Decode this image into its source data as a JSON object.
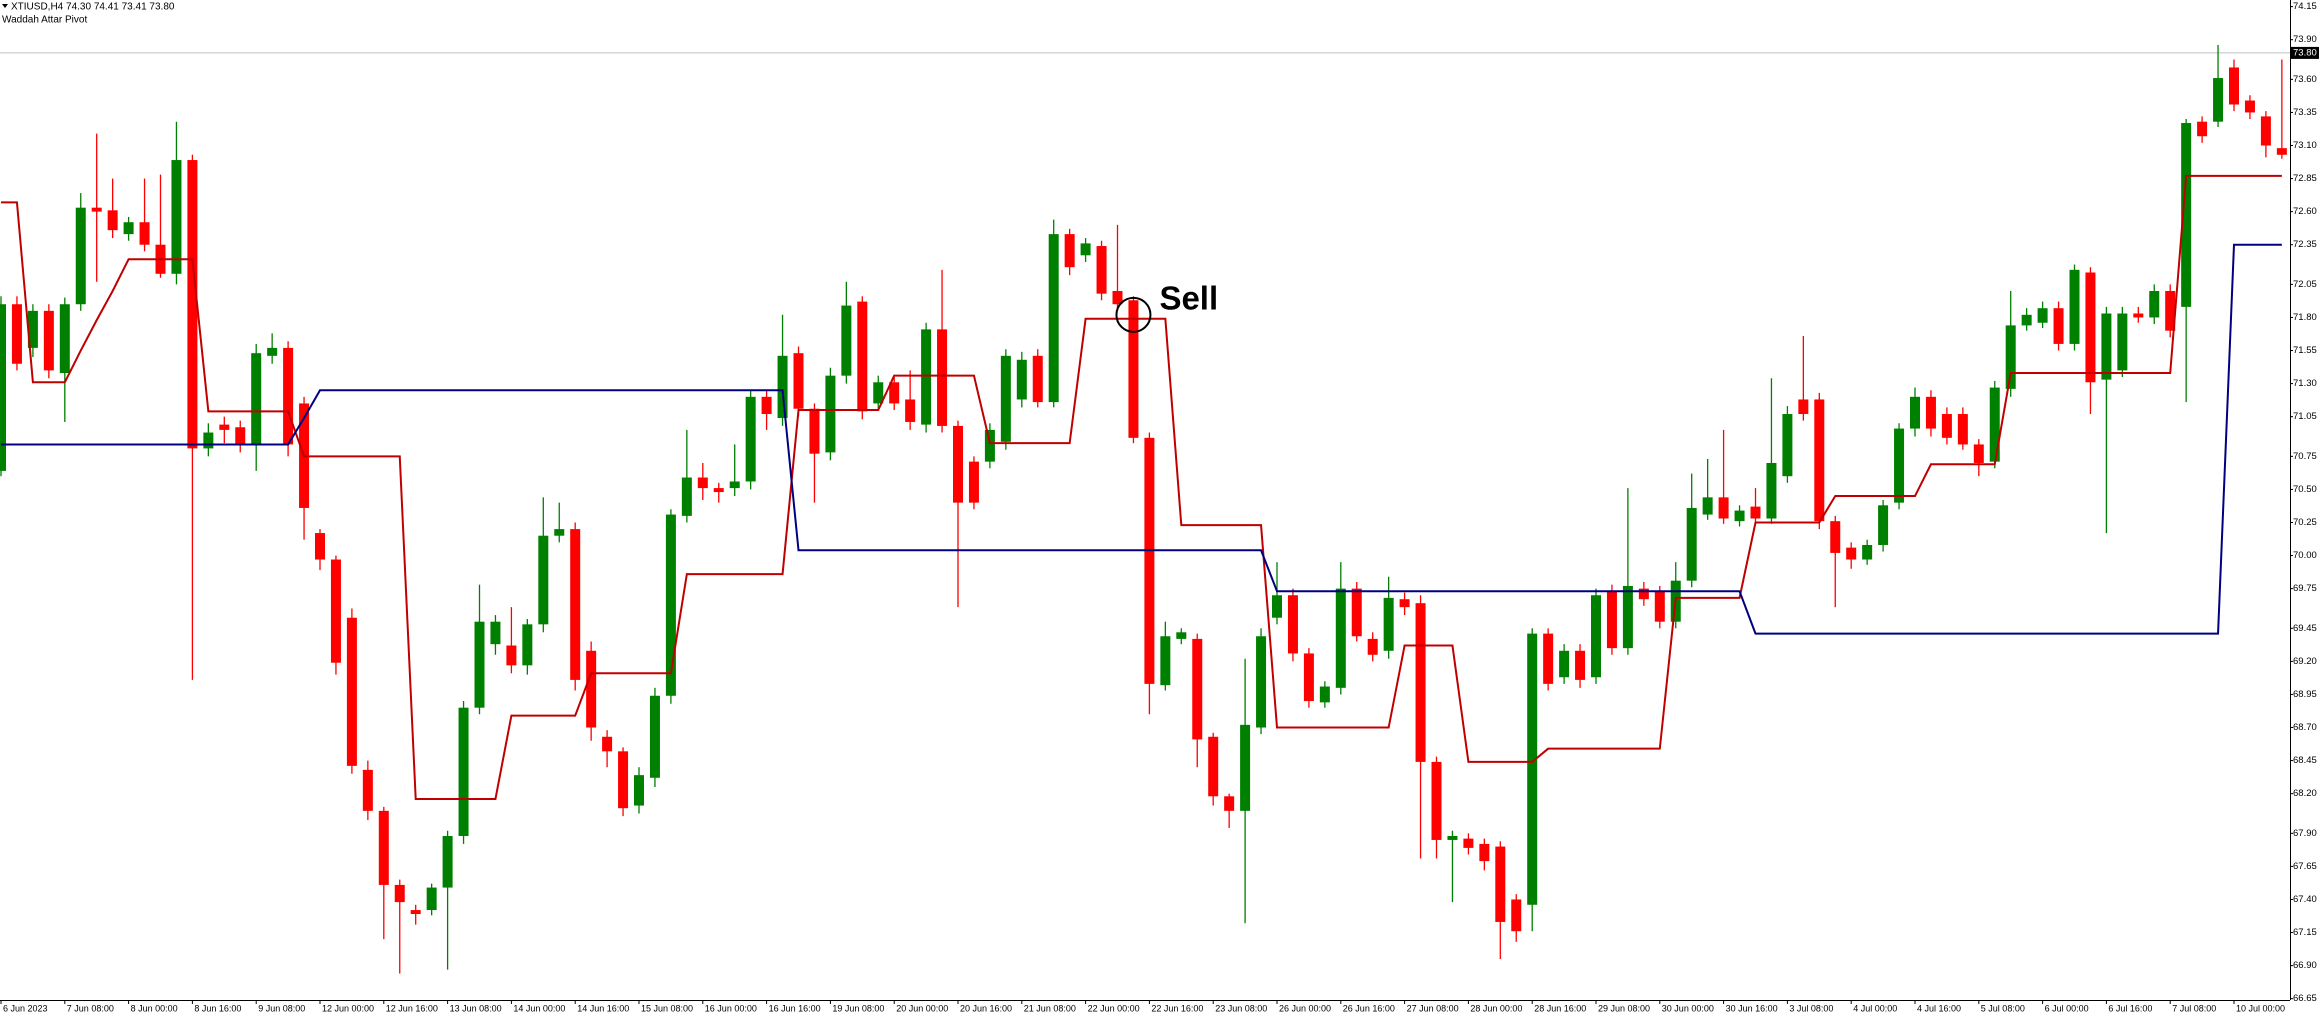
{
  "chart_data": {
    "type": "candlestick",
    "title": "XTIUSD,H4  74.30 74.41 73.41 73.80",
    "subtitle": "Waddah Attar Pivot",
    "up_color": "#008000",
    "down_color": "#ff0000",
    "ylim": [
      66.64,
      74.2
    ],
    "yticks": [
      74.15,
      {
        "value": 73.9,
        "label": "73.90"
      },
      {
        "value": 73.6,
        "label": "73.60"
      },
      73.35,
      {
        "value": 73.1,
        "label": "73.10"
      },
      72.85,
      {
        "value": 72.6,
        "label": "72.60"
      },
      72.35,
      72.05,
      {
        "value": 71.8,
        "label": "71.80"
      },
      71.55,
      {
        "value": 71.3,
        "label": "71.30"
      },
      71.05,
      70.75,
      {
        "value": 70.5,
        "label": "70.50"
      },
      70.25,
      {
        "value": 70,
        "label": "70.00"
      },
      69.75,
      69.45,
      {
        "value": 69.2,
        "label": "69.20"
      },
      68.95,
      {
        "value": 68.7,
        "label": "68.70"
      },
      68.45,
      {
        "value": 68.2,
        "label": "68.20"
      },
      {
        "value": 67.9,
        "label": "67.90"
      },
      67.65,
      {
        "value": 67.4,
        "label": "67.40"
      },
      67.15,
      {
        "value": 66.9,
        "label": "66.90"
      },
      66.65
    ],
    "price_line": {
      "value": 73.8,
      "label": "73.80"
    },
    "annotations": [
      {
        "text": "Sell",
        "x": 71,
        "y": 71.82
      }
    ],
    "categories": [
      "6 Jun 2023",
      null,
      null,
      null,
      "7 Jun 08:00",
      null,
      null,
      null,
      "8 Jun 00:00",
      null,
      null,
      null,
      "8 Jun 16:00",
      null,
      null,
      null,
      "9 Jun 08:00",
      null,
      null,
      null,
      "12 Jun 00:00",
      null,
      null,
      null,
      "12 Jun 16:00",
      null,
      null,
      null,
      "13 Jun 08:00",
      null,
      null,
      null,
      "14 Jun 00:00",
      null,
      null,
      null,
      "14 Jun 16:00",
      null,
      null,
      null,
      "15 Jun 08:00",
      null,
      null,
      null,
      "16 Jun 00:00",
      null,
      null,
      null,
      "16 Jun 16:00",
      null,
      null,
      null,
      "19 Jun 08:00",
      null,
      null,
      null,
      "20 Jun 00:00",
      null,
      null,
      null,
      "20 Jun 16:00",
      null,
      null,
      null,
      "21 Jun 08:00",
      null,
      null,
      null,
      "22 Jun 00:00",
      null,
      null,
      null,
      "22 Jun 16:00",
      null,
      null,
      null,
      "23 Jun 08:00",
      null,
      null,
      null,
      "26 Jun 00:00",
      null,
      null,
      null,
      "26 Jun 16:00",
      null,
      null,
      null,
      "27 Jun 08:00",
      null,
      null,
      null,
      "28 Jun 00:00",
      null,
      null,
      null,
      "28 Jun 16:00",
      null,
      null,
      null,
      "29 Jun 08:00",
      null,
      null,
      null,
      "30 Jun 00:00",
      null,
      null,
      null,
      "30 Jun 16:00",
      null,
      null,
      null,
      "3 Jul 08:00",
      null,
      null,
      null,
      "4 Jul 00:00",
      null,
      null,
      null,
      "4 Jul 16:00",
      null,
      null,
      null,
      "5 Jul 08:00",
      null,
      null,
      null,
      "6 Jul 00:00",
      null,
      null,
      null,
      "6 Jul 16:00",
      null,
      null,
      null,
      "7 Jul 08:00",
      null,
      null,
      null,
      "10 Jul 00:00",
      null,
      null,
      null
    ],
    "open": [
      70.64,
      71.9,
      71.57,
      71.85,
      71.38,
      71.9,
      72.63,
      72.61,
      72.43,
      72.52,
      72.35,
      72.13,
      72.99,
      70.81,
      70.99,
      70.97,
      70.84,
      71.51,
      71.57,
      71.15,
      70.17,
      69.97,
      69.53,
      68.38,
      68.07,
      67.51,
      67.32,
      67.32,
      67.49,
      67.88,
      68.85,
      69.33,
      69.32,
      69.17,
      69.48,
      70.15,
      70.2,
      69.28,
      68.63,
      68.52,
      68.11,
      68.32,
      68.94,
      70.3,
      70.59,
      70.51,
      70.51,
      70.56,
      71.2,
      71.04,
      71.53,
      71.11,
      70.78,
      71.36,
      71.92,
      71.15,
      71.31,
      71.18,
      70.99,
      71.71,
      70.98,
      70.71,
      70.71,
      70.86,
      71.18,
      71.51,
      71.16,
      72.43,
      72.27,
      72.34,
      72.0,
      71.93,
      70.89,
      69.02,
      69.37,
      69.37,
      68.63,
      68.18,
      68.07,
      68.7,
      69.53,
      69.7,
      69.26,
      68.89,
      69.0,
      69.75,
      69.37,
      69.28,
      69.67,
      69.64,
      68.44,
      67.85,
      67.86,
      67.82,
      67.8,
      67.4,
      67.36,
      69.41,
      69.08,
      69.28,
      69.08,
      69.73,
      69.3,
      69.75,
      69.73,
      69.5,
      69.81,
      70.31,
      70.44,
      70.26,
      70.37,
      70.28,
      70.6,
      71.18,
      71.18,
      70.26,
      70.06,
      69.97,
      70.08,
      70.4,
      70.96,
      71.2,
      71.07,
      71.07,
      70.84,
      70.71,
      71.26,
      71.74,
      71.76,
      71.87,
      71.6,
      72.14,
      71.33,
      71.4,
      71.83,
      71.8,
      72.0,
      71.88,
      73.28,
      73.28,
      73.69,
      73.44,
      73.32,
      73.08
    ],
    "high": [
      71.96,
      71.96,
      71.9,
      71.9,
      71.95,
      72.74,
      73.19,
      72.85,
      72.56,
      72.85,
      72.88,
      73.28,
      73.03,
      71.0,
      71.05,
      71.02,
      71.6,
      71.68,
      71.62,
      71.2,
      70.2,
      70.0,
      69.6,
      68.45,
      68.1,
      67.55,
      67.36,
      67.52,
      67.92,
      68.9,
      69.78,
      69.55,
      69.61,
      69.52,
      70.44,
      70.4,
      70.25,
      69.35,
      68.68,
      68.55,
      68.4,
      69.0,
      70.35,
      70.95,
      70.7,
      70.55,
      70.84,
      71.25,
      71.25,
      71.82,
      71.58,
      71.15,
      71.42,
      72.07,
      71.96,
      71.36,
      71.35,
      71.4,
      71.76,
      72.16,
      71.02,
      70.75,
      71.0,
      71.56,
      71.54,
      71.56,
      72.54,
      72.47,
      72.4,
      72.38,
      72.5,
      71.96,
      70.93,
      69.5,
      69.45,
      69.41,
      68.66,
      68.2,
      69.22,
      69.45,
      69.95,
      69.75,
      69.3,
      69.05,
      69.95,
      69.8,
      69.42,
      69.84,
      69.72,
      69.7,
      68.48,
      67.92,
      67.9,
      67.86,
      67.84,
      67.44,
      69.45,
      69.45,
      69.33,
      69.33,
      69.75,
      69.78,
      70.51,
      69.8,
      69.77,
      69.95,
      70.62,
      70.73,
      70.95,
      70.38,
      70.51,
      71.34,
      71.13,
      71.66,
      71.23,
      70.3,
      70.1,
      70.12,
      70.42,
      71.0,
      71.27,
      71.25,
      71.12,
      71.12,
      70.88,
      71.32,
      72.0,
      71.87,
      71.92,
      71.92,
      72.2,
      72.18,
      71.88,
      71.88,
      71.88,
      72.05,
      72.05,
      73.3,
      73.32,
      73.86,
      73.75,
      73.48,
      73.36,
      73.75
    ],
    "low": [
      70.6,
      71.4,
      71.5,
      71.34,
      71.01,
      71.85,
      72.07,
      72.4,
      72.38,
      72.3,
      72.1,
      72.05,
      69.06,
      70.75,
      70.85,
      70.78,
      70.64,
      71.45,
      70.75,
      70.12,
      69.89,
      69.1,
      68.35,
      68.0,
      67.1,
      66.84,
      67.21,
      67.28,
      66.87,
      67.82,
      68.8,
      69.25,
      69.11,
      69.1,
      69.42,
      70.1,
      68.98,
      68.6,
      68.4,
      68.03,
      68.05,
      68.25,
      68.88,
      70.25,
      70.42,
      70.4,
      70.45,
      70.5,
      70.95,
      70.98,
      71.05,
      70.4,
      70.72,
      71.3,
      71.03,
      71.1,
      71.1,
      70.95,
      70.93,
      70.93,
      69.61,
      70.35,
      70.66,
      70.8,
      71.12,
      71.12,
      71.12,
      72.12,
      72.22,
      71.93,
      71.86,
      70.85,
      68.8,
      68.98,
      69.33,
      68.4,
      68.11,
      67.94,
      67.22,
      68.65,
      69.48,
      69.2,
      68.85,
      68.85,
      68.95,
      69.35,
      69.2,
      69.22,
      69.55,
      67.71,
      67.71,
      67.38,
      67.74,
      67.62,
      66.95,
      67.08,
      67.16,
      68.98,
      69.03,
      69.0,
      69.03,
      69.25,
      69.25,
      69.62,
      69.45,
      69.45,
      69.76,
      70.27,
      70.24,
      70.22,
      70.24,
      70.24,
      70.55,
      71.02,
      70.2,
      69.61,
      69.9,
      69.93,
      70.03,
      70.35,
      70.9,
      70.9,
      70.84,
      70.8,
      70.6,
      70.66,
      71.2,
      71.7,
      71.72,
      71.55,
      71.55,
      71.07,
      70.17,
      71.35,
      71.76,
      71.75,
      71.65,
      71.16,
      73.12,
      73.24,
      73.36,
      73.3,
      73.01,
      73.0
    ],
    "close": [
      71.9,
      71.45,
      71.85,
      71.4,
      71.9,
      72.63,
      72.6,
      72.46,
      72.52,
      72.35,
      72.13,
      72.99,
      70.81,
      70.93,
      70.95,
      70.84,
      71.53,
      71.57,
      70.84,
      70.36,
      69.97,
      69.19,
      68.41,
      68.07,
      67.51,
      67.38,
      67.29,
      67.49,
      67.88,
      68.85,
      69.5,
      69.5,
      69.17,
      69.48,
      70.15,
      70.2,
      69.06,
      68.7,
      68.52,
      68.09,
      68.34,
      68.94,
      70.31,
      70.59,
      70.51,
      70.48,
      70.56,
      71.2,
      71.07,
      71.51,
      71.11,
      70.77,
      71.36,
      71.89,
      71.09,
      71.31,
      71.15,
      71.01,
      71.71,
      70.98,
      70.4,
      70.4,
      70.95,
      71.51,
      71.48,
      71.16,
      72.43,
      72.18,
      72.36,
      71.98,
      71.9,
      70.89,
      69.03,
      69.39,
      69.42,
      68.61,
      68.18,
      68.07,
      68.72,
      69.39,
      69.7,
      69.26,
      68.9,
      69.01,
      69.75,
      69.39,
      69.25,
      69.68,
      69.61,
      68.44,
      67.85,
      67.88,
      67.79,
      67.69,
      67.23,
      67.16,
      69.41,
      69.03,
      69.28,
      69.06,
      69.7,
      69.3,
      69.77,
      69.67,
      69.5,
      69.81,
      70.36,
      70.44,
      70.28,
      70.34,
      70.28,
      70.7,
      71.07,
      71.07,
      70.26,
      70.02,
      69.97,
      70.08,
      70.38,
      70.96,
      71.2,
      70.96,
      70.89,
      70.84,
      70.7,
      71.27,
      71.74,
      71.82,
      71.87,
      71.6,
      72.16,
      71.31,
      71.83,
      71.83,
      71.8,
      72.0,
      71.7,
      73.27,
      73.17,
      73.61,
      73.41,
      73.35,
      73.1,
      73.03
    ],
    "lines": [
      {
        "color": "#c00000",
        "values": [
          72.67,
          72.67,
          71.31,
          71.31,
          71.31,
          71.55,
          71.78,
          72.0,
          72.24,
          72.24,
          72.24,
          72.24,
          72.24,
          71.09,
          71.09,
          71.09,
          71.09,
          71.09,
          71.09,
          70.75,
          70.75,
          70.75,
          70.75,
          70.75,
          70.75,
          70.75,
          68.16,
          68.16,
          68.16,
          68.16,
          68.16,
          68.16,
          68.79,
          68.79,
          68.79,
          68.79,
          68.79,
          69.11,
          69.11,
          69.11,
          69.11,
          69.11,
          69.11,
          69.86,
          69.86,
          69.86,
          69.86,
          69.86,
          69.86,
          69.86,
          71.1,
          71.1,
          71.1,
          71.1,
          71.1,
          71.1,
          71.36,
          71.36,
          71.36,
          71.36,
          71.36,
          71.36,
          70.85,
          70.85,
          70.85,
          70.85,
          70.85,
          70.85,
          71.79,
          71.79,
          71.79,
          71.79,
          71.79,
          71.79,
          70.23,
          70.23,
          70.23,
          70.23,
          70.23,
          70.23,
          68.7,
          68.7,
          68.7,
          68.7,
          68.7,
          68.7,
          68.7,
          68.7,
          69.32,
          69.32,
          69.32,
          69.32,
          68.44,
          68.44,
          68.44,
          68.44,
          68.44,
          68.54,
          68.54,
          68.54,
          68.54,
          68.54,
          68.54,
          68.54,
          68.54,
          69.68,
          69.68,
          69.68,
          69.68,
          69.68,
          70.25,
          70.25,
          70.25,
          70.25,
          70.25,
          70.45,
          70.45,
          70.45,
          70.45,
          70.45,
          70.45,
          70.69,
          70.69,
          70.69,
          70.69,
          70.69,
          71.38,
          71.38,
          71.38,
          71.38,
          71.38,
          71.38,
          71.38,
          71.38,
          71.38,
          71.38,
          71.38,
          72.87,
          72.87,
          72.87,
          72.87,
          72.87,
          72.87,
          72.87
        ]
      },
      {
        "color": "#000080",
        "values": [
          70.84,
          70.84,
          70.84,
          70.84,
          70.84,
          70.84,
          70.84,
          70.84,
          70.84,
          70.84,
          70.84,
          70.84,
          70.84,
          70.84,
          70.84,
          70.84,
          70.84,
          70.84,
          70.84,
          71.04,
          71.25,
          71.25,
          71.25,
          71.25,
          71.25,
          71.25,
          71.25,
          71.25,
          71.25,
          71.25,
          71.25,
          71.25,
          71.25,
          71.25,
          71.25,
          71.25,
          71.25,
          71.25,
          71.25,
          71.25,
          71.25,
          71.25,
          71.25,
          71.25,
          71.25,
          71.25,
          71.25,
          71.25,
          71.25,
          71.25,
          70.04,
          70.04,
          70.04,
          70.04,
          70.04,
          70.04,
          70.04,
          70.04,
          70.04,
          70.04,
          70.04,
          70.04,
          70.04,
          70.04,
          70.04,
          70.04,
          70.04,
          70.04,
          70.04,
          70.04,
          70.04,
          70.04,
          70.04,
          70.04,
          70.04,
          70.04,
          70.04,
          70.04,
          70.04,
          70.04,
          69.73,
          69.73,
          69.73,
          69.73,
          69.73,
          69.73,
          69.73,
          69.73,
          69.73,
          69.73,
          69.73,
          69.73,
          69.73,
          69.73,
          69.73,
          69.73,
          69.73,
          69.73,
          69.73,
          69.73,
          69.73,
          69.73,
          69.73,
          69.73,
          69.73,
          69.73,
          69.73,
          69.73,
          69.73,
          69.73,
          69.41,
          69.41,
          69.41,
          69.41,
          69.41,
          69.41,
          69.41,
          69.41,
          69.41,
          69.41,
          69.41,
          69.41,
          69.41,
          69.41,
          69.41,
          69.41,
          69.41,
          69.41,
          69.41,
          69.41,
          69.41,
          69.41,
          69.41,
          69.41,
          69.41,
          69.41,
          69.41,
          69.41,
          69.41,
          69.41,
          72.35,
          72.35,
          72.35,
          72.35
        ]
      }
    ]
  }
}
